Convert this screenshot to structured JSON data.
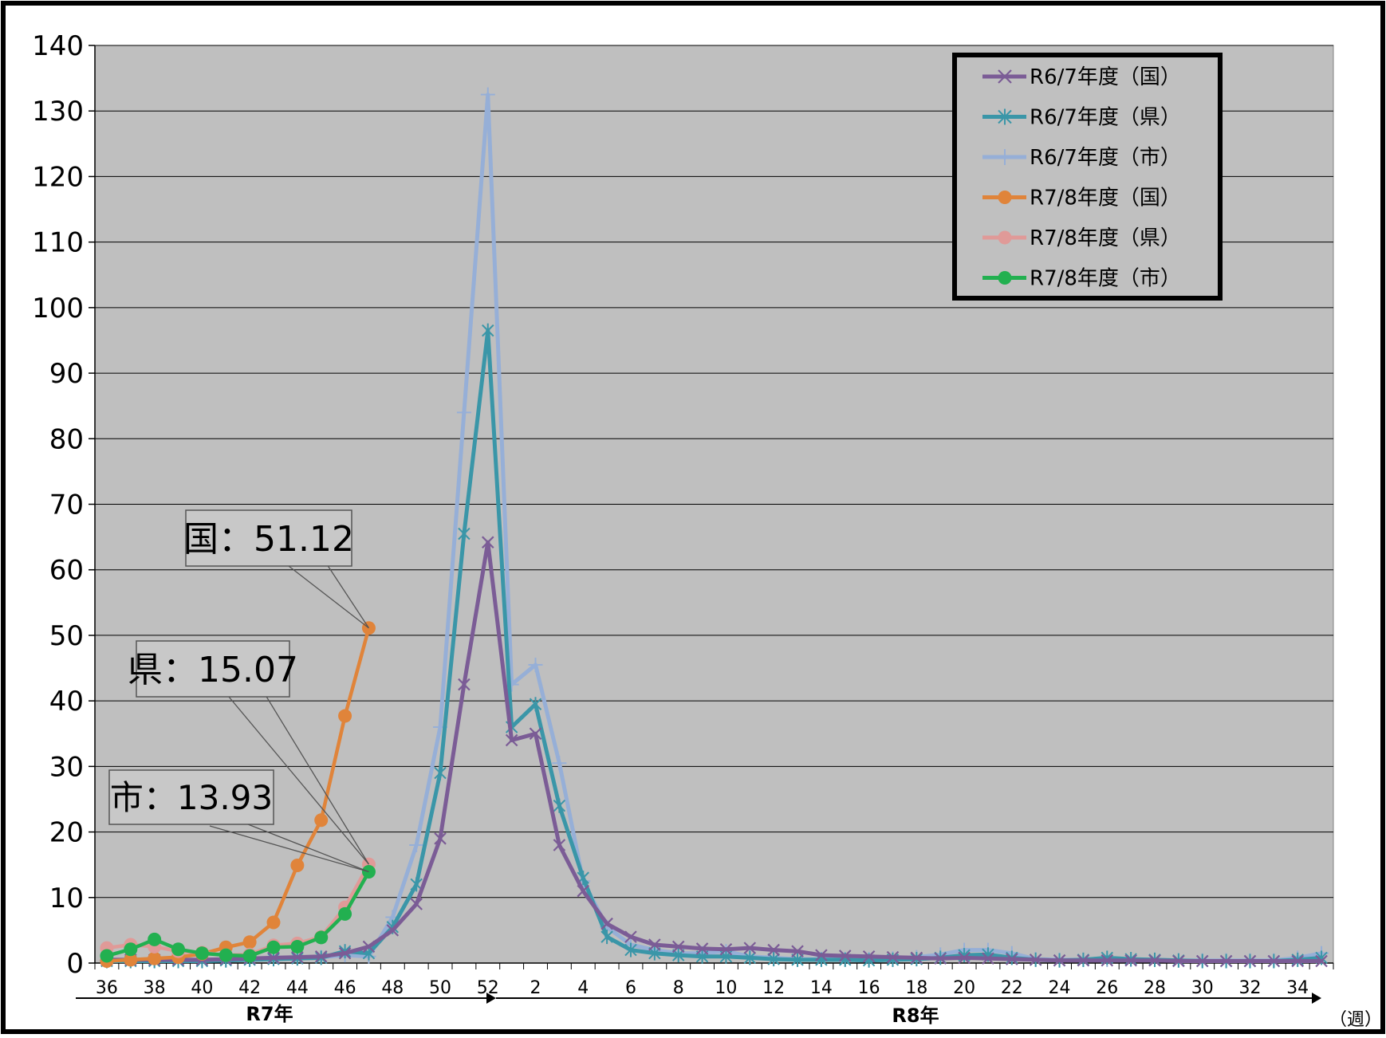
{
  "chart_data": {
    "type": "line",
    "ylim": [
      0,
      140
    ],
    "y_ticks": [
      "0",
      "10",
      "20",
      "30",
      "40",
      "50",
      "60",
      "70",
      "80",
      "90",
      "100",
      "110",
      "120",
      "130",
      "140"
    ],
    "x_tick_labels": [
      "36",
      "38",
      "40",
      "42",
      "44",
      "46",
      "48",
      "50",
      "52",
      "2",
      "4",
      "6",
      "8",
      "10",
      "12",
      "14",
      "16",
      "18",
      "20",
      "22",
      "24",
      "26",
      "28",
      "30",
      "32",
      "34"
    ],
    "x_categories": [
      "36",
      "37",
      "38",
      "39",
      "40",
      "41",
      "42",
      "43",
      "44",
      "45",
      "46",
      "47",
      "48",
      "49",
      "50",
      "51",
      "52",
      "1",
      "2",
      "3",
      "4",
      "5",
      "6",
      "7",
      "8",
      "9",
      "10",
      "11",
      "12",
      "13",
      "14",
      "15",
      "16",
      "17",
      "18",
      "19",
      "20",
      "21",
      "22",
      "23",
      "24",
      "25",
      "26",
      "27",
      "28",
      "29",
      "30",
      "31",
      "32",
      "33",
      "34",
      "35"
    ],
    "grid": true,
    "legend_position": "top-right",
    "year_labels": {
      "first": "R7年",
      "second": "R8年"
    },
    "x_unit": "（週）",
    "series": [
      {
        "name": "R6/7年度（国）",
        "color": "#7b5c96",
        "marker": "x",
        "values": [
          0.5,
          0.5,
          0.5,
          0.5,
          0.5,
          0.6,
          0.7,
          0.8,
          0.9,
          1.0,
          1.5,
          2.5,
          5.0,
          9.0,
          19.0,
          42.5,
          64.2,
          34.0,
          35.0,
          18.0,
          11.0,
          6.0,
          4.0,
          2.8,
          2.5,
          2.2,
          2.1,
          2.3,
          2.0,
          1.8,
          1.2,
          1.1,
          1.0,
          0.9,
          0.8,
          0.7,
          0.8,
          0.7,
          0.6,
          0.5,
          0.4,
          0.4,
          0.4,
          0.4,
          0.4,
          0.3,
          0.3,
          0.3,
          0.3,
          0.3,
          0.3,
          0.3
        ]
      },
      {
        "name": "R6/7年度（県）",
        "color": "#3a96a8",
        "marker": "asterisk",
        "values": [
          0.3,
          0.3,
          0.3,
          0.3,
          0.3,
          0.4,
          0.5,
          0.6,
          0.7,
          0.8,
          1.8,
          1.5,
          5.5,
          12.0,
          29.0,
          65.5,
          96.5,
          36.0,
          39.5,
          24.0,
          13.0,
          4.0,
          2.0,
          1.5,
          1.2,
          1.0,
          1.0,
          0.8,
          0.6,
          0.5,
          0.5,
          0.5,
          0.4,
          0.5,
          0.6,
          0.8,
          1.2,
          1.3,
          0.8,
          0.5,
          0.4,
          0.5,
          0.8,
          0.6,
          0.5,
          0.4,
          0.3,
          0.3,
          0.3,
          0.3,
          0.5,
          0.8
        ]
      },
      {
        "name": "R6/7年度（市）",
        "color": "#96afd7",
        "marker": "plus",
        "values": [
          0.4,
          0.4,
          0.4,
          0.4,
          0.4,
          0.5,
          0.6,
          0.7,
          0.8,
          0.9,
          1.2,
          1.0,
          7.0,
          18.0,
          36.0,
          84.0,
          132.5,
          42.5,
          45.5,
          30.5,
          12.5,
          5.5,
          2.8,
          2.0,
          1.5,
          1.5,
          1.8,
          1.0,
          0.8,
          0.6,
          0.6,
          0.6,
          0.6,
          0.7,
          0.9,
          1.3,
          2.0,
          2.0,
          1.5,
          0.6,
          0.5,
          0.5,
          0.5,
          0.5,
          0.5,
          0.4,
          0.4,
          0.4,
          0.4,
          0.4,
          0.8,
          1.5
        ]
      },
      {
        "name": "R7/8年度（国）",
        "color": "#e0843a",
        "marker": "circle",
        "values": [
          0.3,
          0.5,
          0.7,
          0.9,
          1.4,
          2.4,
          3.2,
          6.2,
          14.9,
          21.8,
          37.7,
          51.12
        ]
      },
      {
        "name": "R7/8年度（県）",
        "color": "#e09a98",
        "marker": "circle",
        "values": [
          2.3,
          2.8,
          2.5,
          1.8,
          1.6,
          1.2,
          1.3,
          2.7,
          3.0,
          4.0,
          8.5,
          15.07
        ]
      },
      {
        "name": "R7/8年度（市）",
        "color": "#22b050",
        "marker": "circle",
        "values": [
          1.1,
          2.1,
          3.6,
          2.1,
          1.5,
          1.2,
          1.1,
          2.4,
          2.5,
          3.9,
          7.5,
          13.93
        ]
      }
    ],
    "annotations": [
      {
        "text": "国：51.12"
      },
      {
        "text": "県：15.07"
      },
      {
        "text": "市：13.93"
      }
    ]
  }
}
